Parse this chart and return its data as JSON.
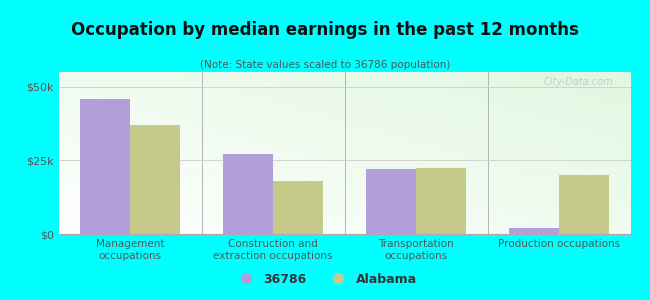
{
  "title": "Occupation by median earnings in the past 12 months",
  "subtitle": "(Note: State values scaled to 36786 population)",
  "categories": [
    "Management\noccupations",
    "Construction and\nextraction occupations",
    "Transportation\noccupations",
    "Production occupations"
  ],
  "values_36786": [
    46000,
    27000,
    22000,
    2000
  ],
  "values_alabama": [
    37000,
    18000,
    22500,
    20000
  ],
  "color_36786": "#b39ddb",
  "color_alabama": "#c5c98a",
  "ylim": [
    0,
    55000
  ],
  "yticks": [
    0,
    25000,
    50000
  ],
  "ytick_labels": [
    "$0",
    "$25k",
    "$50k"
  ],
  "background_color": "#00ffff",
  "legend_label_1": "36786",
  "legend_label_2": "Alabama",
  "bar_width": 0.35,
  "watermark": "City-Data.com"
}
